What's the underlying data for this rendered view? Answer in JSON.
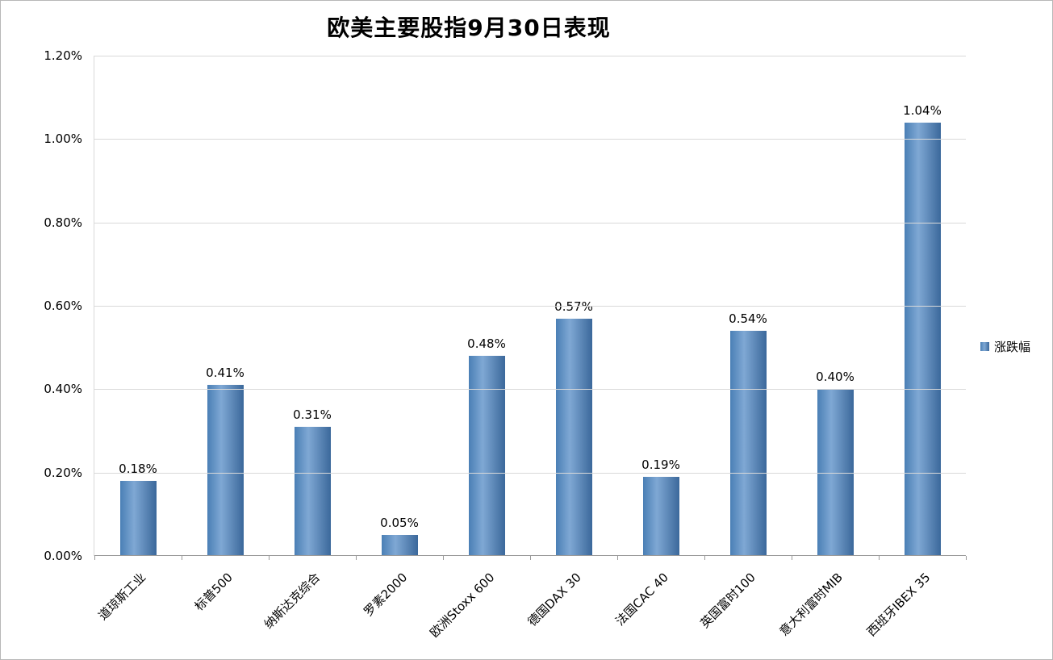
{
  "title": "欧美主要股指9月30日表现",
  "legend": {
    "label": "涨跌幅",
    "color": "#4F81BD",
    "position": "right"
  },
  "chart_data": {
    "type": "bar",
    "title": "欧美主要股指9月30日表现",
    "categories": [
      "道琼斯工业",
      "标普500",
      "纳斯达克综合",
      "罗素2000",
      "欧洲Stoxx 600",
      "德国DAX 30",
      "法国CAC 40",
      "英国富时100",
      "意大利富时MIB",
      "西班牙IBEX 35"
    ],
    "values": [
      0.18,
      0.41,
      0.31,
      0.05,
      0.48,
      0.57,
      0.19,
      0.54,
      0.4,
      1.04
    ],
    "value_labels": [
      "0.18%",
      "0.41%",
      "0.31%",
      "0.05%",
      "0.48%",
      "0.57%",
      "0.19%",
      "0.54%",
      "0.40%",
      "1.04%"
    ],
    "series": [
      {
        "name": "涨跌幅",
        "values": [
          0.18,
          0.41,
          0.31,
          0.05,
          0.48,
          0.57,
          0.19,
          0.54,
          0.4,
          1.04
        ]
      }
    ],
    "xlabel": "",
    "ylabel": "",
    "ylim": [
      0,
      1.2
    ],
    "ytick_step": 0.2,
    "ytick_labels": [
      "0.00%",
      "0.20%",
      "0.40%",
      "0.60%",
      "0.80%",
      "1.00%",
      "1.20%"
    ],
    "grid": true,
    "legend_position": "right",
    "bar_color": "#4F81BD"
  }
}
